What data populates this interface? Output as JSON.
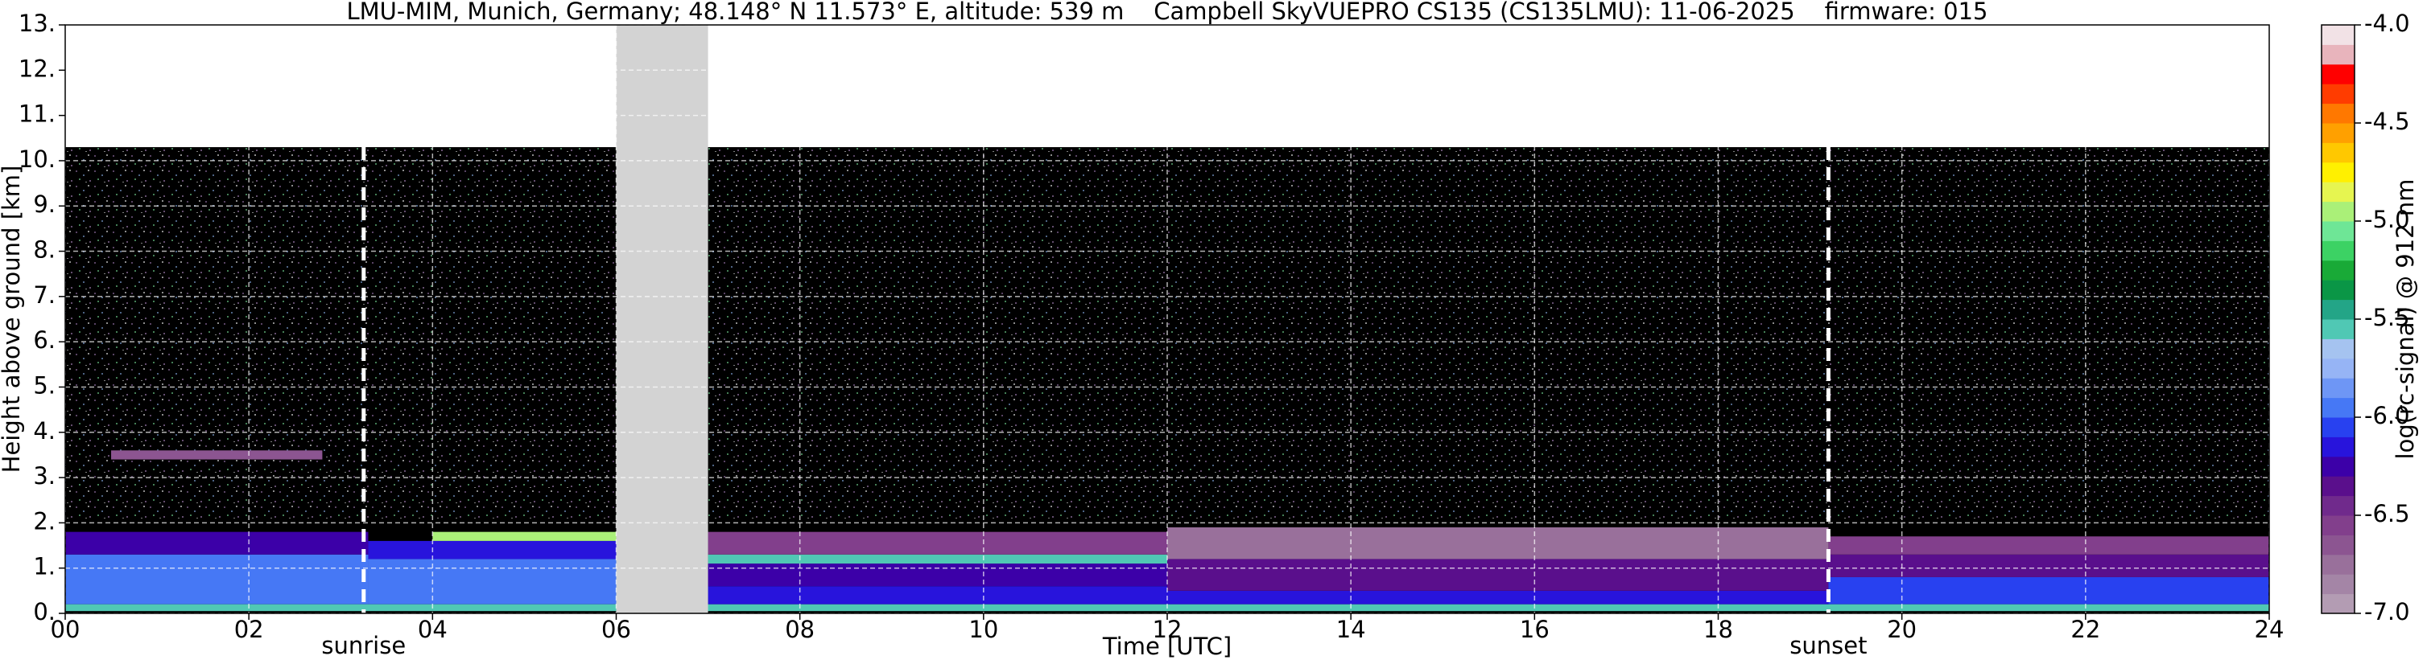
{
  "chart_data": {
    "type": "heatmap",
    "title": "LMU-MIM, Munich, Germany; 48.148° N 11.573° E, altitude: 539 m    Campbell SkyVUEPRO CS135 (CS135LMU): 11-06-2025    firmware: 015",
    "xlabel": "Time [UTC]",
    "ylabel": "Height above ground [km]",
    "xlim": [
      0,
      24
    ],
    "xticks": [
      {
        "value": 0,
        "label": "00"
      },
      {
        "value": 2,
        "label": "02"
      },
      {
        "value": 4,
        "label": "04"
      },
      {
        "value": 6,
        "label": "06"
      },
      {
        "value": 8,
        "label": "08"
      },
      {
        "value": 10,
        "label": "10"
      },
      {
        "value": 12,
        "label": "12"
      },
      {
        "value": 14,
        "label": "14"
      },
      {
        "value": 16,
        "label": "16"
      },
      {
        "value": 18,
        "label": "18"
      },
      {
        "value": 20,
        "label": "20"
      },
      {
        "value": 22,
        "label": "22"
      },
      {
        "value": 24,
        "label": "24"
      }
    ],
    "ylim": [
      0,
      13
    ],
    "yticks": [
      {
        "value": 0,
        "label": "0."
      },
      {
        "value": 1,
        "label": "1."
      },
      {
        "value": 2,
        "label": "2."
      },
      {
        "value": 3,
        "label": "3."
      },
      {
        "value": 4,
        "label": "4."
      },
      {
        "value": 5,
        "label": "5."
      },
      {
        "value": 6,
        "label": "6."
      },
      {
        "value": 7,
        "label": "7."
      },
      {
        "value": 8,
        "label": "8."
      },
      {
        "value": 9,
        "label": "9."
      },
      {
        "value": 10,
        "label": "10."
      },
      {
        "value": 11,
        "label": "11."
      },
      {
        "value": 12,
        "label": "12."
      },
      {
        "value": 13,
        "label": "13."
      }
    ],
    "grid": true,
    "grid_color": "#ffffff",
    "under_color": "#000000",
    "gap_color": "#d3d3d3",
    "regions": [
      {
        "t0": 0,
        "t1": 24,
        "h0": 0,
        "h1": 10.3,
        "value": -7.5
      },
      {
        "t0": 0,
        "t1": 3.3,
        "h0": 0.2,
        "h1": 1.3,
        "value": -6.0
      },
      {
        "t0": 0,
        "t1": 3.3,
        "h0": 1.3,
        "h1": 1.8,
        "value": -6.3
      },
      {
        "t0": 0.5,
        "t1": 2.8,
        "h0": 3.4,
        "h1": 3.6,
        "value": -6.7
      },
      {
        "t0": 3.3,
        "t1": 6,
        "h0": 0.2,
        "h1": 1.2,
        "value": -6.0
      },
      {
        "t0": 3.3,
        "t1": 6,
        "h0": 1.2,
        "h1": 1.6,
        "value": -6.2
      },
      {
        "t0": 4,
        "t1": 6,
        "h0": 1.6,
        "h1": 1.8,
        "value": -5.0
      },
      {
        "t0": 7,
        "t1": 12,
        "h0": 0.2,
        "h1": 0.6,
        "value": -6.2
      },
      {
        "t0": 7,
        "t1": 12,
        "h0": 0.6,
        "h1": 1.1,
        "value": -6.3
      },
      {
        "t0": 7,
        "t1": 12,
        "h0": 1.1,
        "h1": 1.3,
        "value": -5.6
      },
      {
        "t0": 7,
        "t1": 12,
        "h0": 1.3,
        "h1": 1.8,
        "value": -6.6
      },
      {
        "t0": 12,
        "t1": 19.2,
        "h0": 0.2,
        "h1": 0.5,
        "value": -6.2
      },
      {
        "t0": 12,
        "t1": 19.2,
        "h0": 0.5,
        "h1": 1.2,
        "value": -6.4
      },
      {
        "t0": 12,
        "t1": 19.2,
        "h0": 1.2,
        "h1": 1.9,
        "value": -6.8
      },
      {
        "t0": 19.2,
        "t1": 24,
        "h0": 0.2,
        "h1": 0.8,
        "value": -6.1
      },
      {
        "t0": 19.2,
        "t1": 24,
        "h0": 0.8,
        "h1": 1.3,
        "value": -6.4
      },
      {
        "t0": 19.2,
        "t1": 24,
        "h0": 1.3,
        "h1": 1.7,
        "value": -6.6
      },
      {
        "t0": 0,
        "t1": 24,
        "h0": 0.05,
        "h1": 0.2,
        "value": -5.6
      }
    ],
    "gaps": [
      {
        "t0": 6,
        "t1": 7
      }
    ],
    "events": [
      {
        "label": "sunrise",
        "x": 3.25,
        "top": 10.3
      },
      {
        "label": "sunset",
        "x": 19.2,
        "top": 10.3
      }
    ],
    "colorbar": {
      "label": "log(rc-signal) @ 912 nm",
      "lim": [
        -7,
        -4
      ],
      "ticks": [
        {
          "value": -7,
          "label": "-7.0"
        },
        -6.5,
        {
          "value": -6,
          "label": "-6.0"
        },
        -5.5,
        {
          "value": -5,
          "label": "-5.0"
        },
        -4.5,
        {
          "value": -4,
          "label": "-4.0"
        }
      ],
      "levels": [
        -7.0,
        -6.9,
        -6.8,
        -6.7,
        -6.6,
        -6.5,
        -6.4,
        -6.3,
        -6.2,
        -6.1,
        -6.0,
        -5.9,
        -5.8,
        -5.7,
        -5.6,
        -5.5,
        -5.4,
        -5.3,
        -5.2,
        -5.1,
        -5.0,
        -4.9,
        -4.8,
        -4.7,
        -4.6,
        -4.5,
        -4.4,
        -4.3,
        -4.2,
        -4.1,
        -4.0
      ],
      "colors": [
        "#b39cb3",
        "#a485a6",
        "#99709b",
        "#8c5591",
        "#823f8c",
        "#702a8c",
        "#5a0f8c",
        "#3c00a8",
        "#2814dc",
        "#2841f0",
        "#4678f5",
        "#6e96f5",
        "#96b4f5",
        "#a5c3f0",
        "#50c8b4",
        "#23a587",
        "#0a9646",
        "#19aa37",
        "#3cd264",
        "#6ee696",
        "#aaf078",
        "#e6f550",
        "#fff000",
        "#ffc800",
        "#ffa000",
        "#ff7800",
        "#ff3c00",
        "#ff0000",
        "#e8b4bc",
        "#f2e2e6"
      ]
    }
  }
}
